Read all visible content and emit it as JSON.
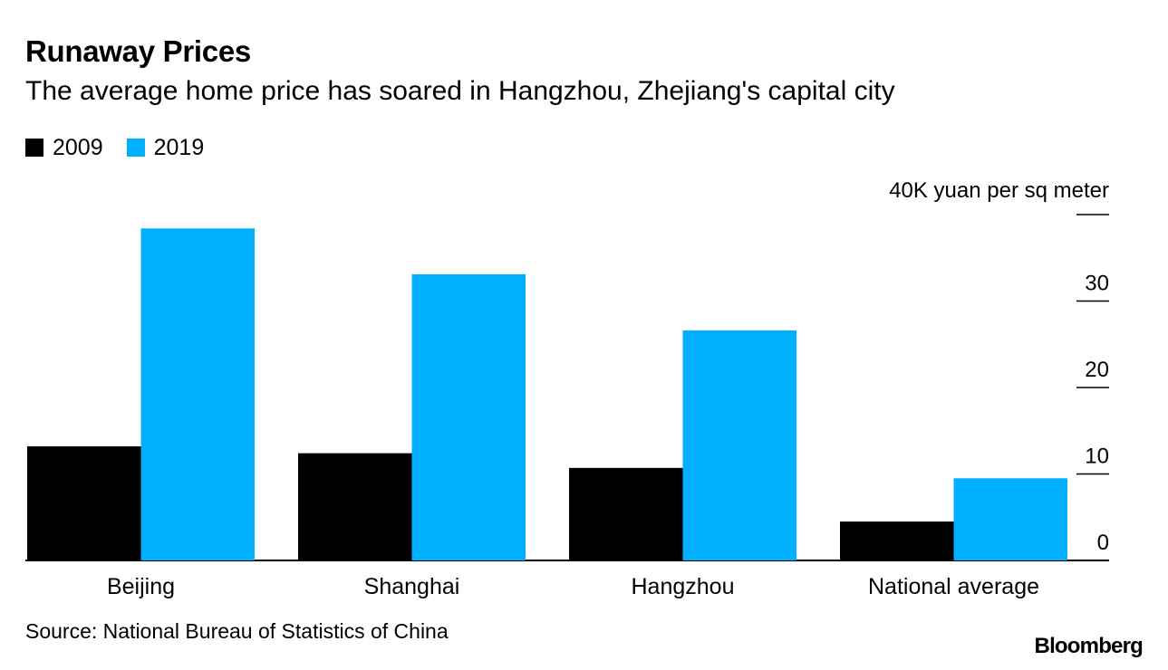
{
  "chart_data": {
    "type": "bar",
    "title": "Runaway Prices",
    "subtitle": "The average home price has soared in Hangzhou, Zhejiang's capital city",
    "categories": [
      "Beijing",
      "Shanghai",
      "Hangzhou",
      "National average"
    ],
    "series": [
      {
        "name": "2009",
        "color": "#000000",
        "values": [
          13.2,
          12.4,
          10.7,
          4.5
        ]
      },
      {
        "name": "2019",
        "color": "#00B0FF",
        "values": [
          38.4,
          33.1,
          26.6,
          9.5
        ]
      }
    ],
    "y_ticks": [
      0,
      10,
      20,
      30,
      40
    ],
    "y_tick_labels": [
      "0",
      "10",
      "20",
      "30",
      ""
    ],
    "ylabel": "40K yuan per sq meter",
    "ylim": [
      0,
      40
    ],
    "y_axis_side": "right",
    "legend_position": "top-left",
    "grid": false
  },
  "source": "Source: National Bureau of Statistics of China",
  "brand": "Bloomberg"
}
